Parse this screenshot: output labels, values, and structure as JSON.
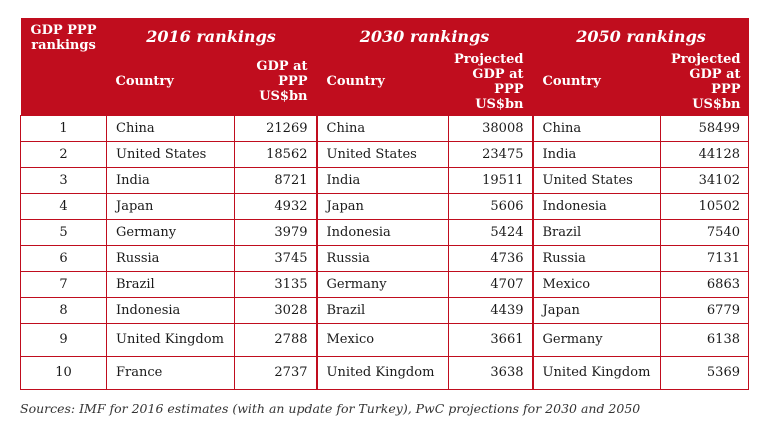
{
  "headers": {
    "rank": "GDP PPP rankings",
    "group_2016": "2016 rankings",
    "group_2030": "2030 rankings",
    "group_2050": "2050 rankings",
    "country": "Country",
    "value_2016": "GDP at PPP US$bn",
    "value_2030": "Projected GDP at PPP US$bn",
    "value_2050": "Projected GDP at PPP US$bn"
  },
  "rows": [
    {
      "rank": "1",
      "c2016": "China",
      "v2016": "21269",
      "c2030": "China",
      "v2030": "38008",
      "c2050": "China",
      "v2050": "58499"
    },
    {
      "rank": "2",
      "c2016": "United States",
      "v2016": "18562",
      "c2030": "United States",
      "v2030": "23475",
      "c2050": "India",
      "v2050": "44128"
    },
    {
      "rank": "3",
      "c2016": "India",
      "v2016": "8721",
      "c2030": "India",
      "v2030": "19511",
      "c2050": "United States",
      "v2050": "34102"
    },
    {
      "rank": "4",
      "c2016": "Japan",
      "v2016": "4932",
      "c2030": "Japan",
      "v2030": "5606",
      "c2050": "Indonesia",
      "v2050": "10502"
    },
    {
      "rank": "5",
      "c2016": "Germany",
      "v2016": "3979",
      "c2030": "Indonesia",
      "v2030": "5424",
      "c2050": "Brazil",
      "v2050": "7540"
    },
    {
      "rank": "6",
      "c2016": "Russia",
      "v2016": "3745",
      "c2030": "Russia",
      "v2030": "4736",
      "c2050": "Russia",
      "v2050": "7131"
    },
    {
      "rank": "7",
      "c2016": "Brazil",
      "v2016": "3135",
      "c2030": "Germany",
      "v2030": "4707",
      "c2050": "Mexico",
      "v2050": "6863"
    },
    {
      "rank": "8",
      "c2016": "Indonesia",
      "v2016": "3028",
      "c2030": "Brazil",
      "v2030": "4439",
      "c2050": "Japan",
      "v2050": "6779"
    },
    {
      "rank": "9",
      "c2016": "United Kingdom",
      "v2016": "2788",
      "c2030": "Mexico",
      "v2030": "3661",
      "c2050": "Germany",
      "v2050": "6138"
    },
    {
      "rank": "10",
      "c2016": "France",
      "v2016": "2737",
      "c2030": "United Kingdom",
      "v2030": "3638",
      "c2050": "United Kingdom",
      "v2050": "5369"
    }
  ],
  "source": "Sources: IMF for 2016 estimates (with an update for Turkey), PwC projections for 2030 and 2050",
  "colors": {
    "header_bg": "#c00d1e",
    "header_text": "#ffffff",
    "grid": "#c00d1e"
  }
}
